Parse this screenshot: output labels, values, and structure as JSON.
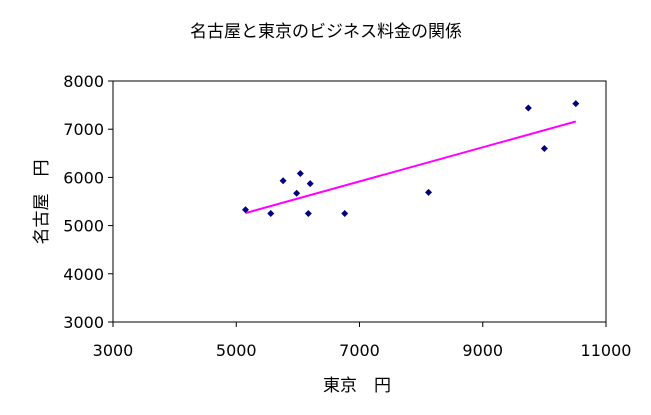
{
  "chart_data": {
    "type": "scatter",
    "title": "名古屋と東京のビジネス料金の関係",
    "xlabel": "東京　円",
    "ylabel": "名古屋　円",
    "xlim": [
      3000,
      11000
    ],
    "ylim": [
      3000,
      8000
    ],
    "xticks": [
      "3000",
      "5000",
      "7000",
      "9000",
      "11000"
    ],
    "yticks": [
      "3000",
      "4000",
      "5000",
      "6000",
      "7000",
      "8000"
    ],
    "grid": false,
    "legend": "none",
    "marker_color": "#000080",
    "trendline_color": "#ff00ff",
    "points": [
      {
        "x": 5150,
        "y": 5330
      },
      {
        "x": 5560,
        "y": 5250
      },
      {
        "x": 5760,
        "y": 5930
      },
      {
        "x": 5980,
        "y": 5670
      },
      {
        "x": 6040,
        "y": 6080
      },
      {
        "x": 6170,
        "y": 5250
      },
      {
        "x": 6200,
        "y": 5870
      },
      {
        "x": 6760,
        "y": 5250
      },
      {
        "x": 8120,
        "y": 5690
      },
      {
        "x": 9740,
        "y": 7440
      },
      {
        "x": 10000,
        "y": 6600
      },
      {
        "x": 10510,
        "y": 7530
      }
    ],
    "trendline": [
      {
        "x": 5150,
        "y": 5260
      },
      {
        "x": 10510,
        "y": 7160
      }
    ]
  }
}
